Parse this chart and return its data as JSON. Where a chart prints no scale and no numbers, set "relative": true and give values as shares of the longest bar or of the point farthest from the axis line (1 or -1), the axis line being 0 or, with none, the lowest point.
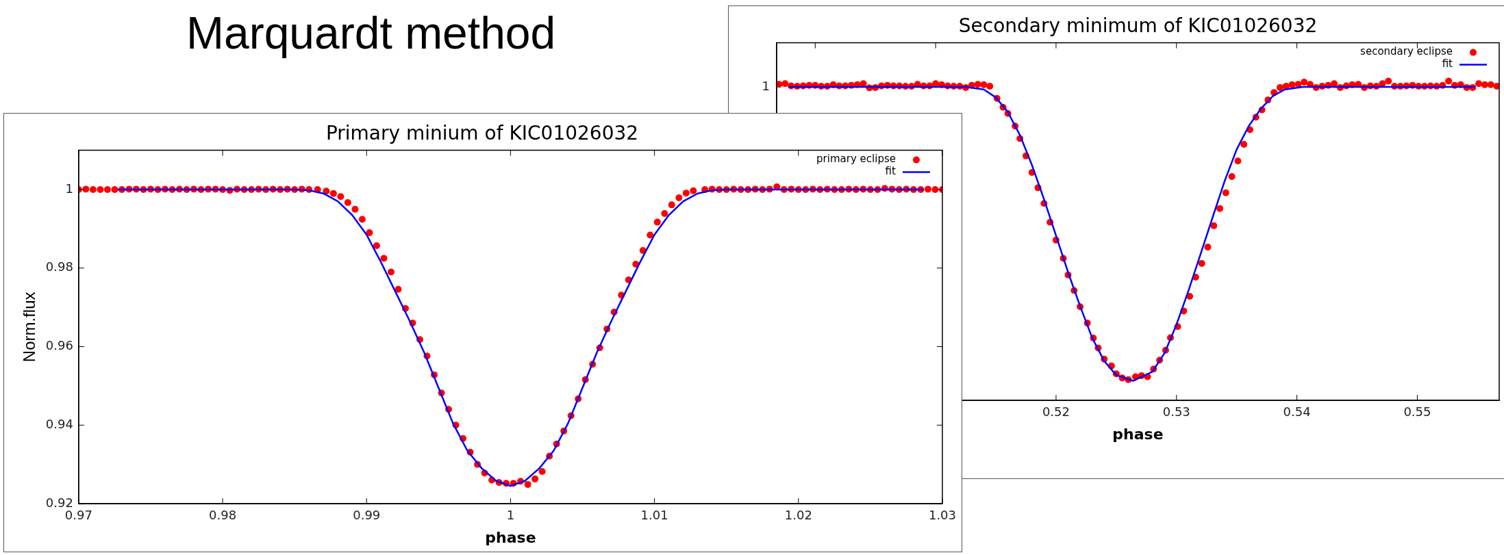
{
  "chart_data": [
    {
      "type": "scatter",
      "title": "Primary minium of KIC01026032",
      "xlabel": "phase",
      "ylabel": "Norm.flux",
      "annotations": [
        "Marquardt method"
      ],
      "xlim": [
        0.97,
        1.03
      ],
      "xticks": [
        0.97,
        0.98,
        0.99,
        1,
        1.01,
        1.02,
        1.03
      ],
      "ylim": [
        0.92,
        1.01
      ],
      "yticks": [
        0.92,
        0.94,
        0.96,
        0.98,
        1
      ],
      "grid": false,
      "legend": "top right",
      "series": [
        {
          "name": "primary eclipse",
          "marker": "circle",
          "color": "#ff0000",
          "x": [
            0.97,
            0.9705,
            0.971,
            0.9715,
            0.972,
            0.9725,
            0.973,
            0.9735,
            0.974,
            0.9745,
            0.975,
            0.9755,
            0.976,
            0.9765,
            0.977,
            0.9775,
            0.978,
            0.9785,
            0.979,
            0.9795,
            0.98,
            0.9805,
            0.981,
            0.9815,
            0.982,
            0.9825,
            0.983,
            0.9835,
            0.984,
            0.9845,
            0.985,
            0.9855,
            0.986,
            0.9866,
            0.9872,
            0.9877,
            0.9882,
            0.9887,
            0.9892,
            0.9897,
            0.9902,
            0.9907,
            0.9912,
            0.9917,
            0.9922,
            0.9927,
            0.9932,
            0.9937,
            0.9942,
            0.9947,
            0.9952,
            0.9957,
            0.9962,
            0.9967,
            0.9972,
            0.9977,
            0.9982,
            0.9987,
            0.9992,
            0.9997,
            1.0002,
            1.0007,
            1.0012,
            1.0017,
            1.0022,
            1.0027,
            1.0032,
            1.0037,
            1.0042,
            1.0047,
            1.0052,
            1.0057,
            1.0062,
            1.0067,
            1.0072,
            1.0077,
            1.0082,
            1.0087,
            1.0092,
            1.0097,
            1.0102,
            1.0107,
            1.0112,
            1.0117,
            1.0122,
            1.0127,
            1.0135,
            1.014,
            1.0145,
            1.015,
            1.0155,
            1.016,
            1.0165,
            1.017,
            1.0175,
            1.018,
            1.0185,
            1.019,
            1.0195,
            1.02,
            1.0205,
            1.021,
            1.0215,
            1.022,
            1.0225,
            1.023,
            1.0235,
            1.024,
            1.0245,
            1.025,
            1.0255,
            1.026,
            1.0265,
            1.027,
            1.0275,
            1.028,
            1.0285,
            1.029,
            1.0295,
            1.03
          ],
          "values": [
            1,
            1.0001,
            1,
            1,
            1,
            1,
            1,
            1.0001,
            1.0001,
            1,
            1.0001,
            1,
            1.0001,
            1,
            1.0001,
            1,
            1.0001,
            1,
            1.0001,
            1.0001,
            1,
            0.9998,
            1.0001,
            1,
            1,
            1.0001,
            1,
            1.0001,
            1,
            1.0001,
            1,
            1.0001,
            1,
            1.0,
            0.9996,
            0.999,
            0.9982,
            0.9967,
            0.995,
            0.9924,
            0.989,
            0.9857,
            0.9825,
            0.979,
            0.9746,
            0.9697,
            0.966,
            0.9618,
            0.9576,
            0.9528,
            0.9482,
            0.944,
            0.94,
            0.9366,
            0.9331,
            0.93,
            0.9278,
            0.926,
            0.9254,
            0.9252,
            0.9252,
            0.9257,
            0.9249,
            0.9263,
            0.9282,
            0.9321,
            0.9352,
            0.9385,
            0.9424,
            0.9467,
            0.9516,
            0.9555,
            0.9597,
            0.9645,
            0.9688,
            0.9731,
            0.977,
            0.981,
            0.9845,
            0.9884,
            0.9917,
            0.9939,
            0.9961,
            0.9979,
            0.9991,
            0.9997,
            1,
            1.0001,
            1,
            1,
            1.0001,
            1,
            1,
            1.0001,
            1,
            1.0001,
            1.0007,
            1,
            1.0001,
            1,
            1,
            1.0001,
            1,
            1.0001,
            1,
            1,
            1.0001,
            1,
            1.0001,
            1,
            1,
            1.0003,
            1.0001,
            1,
            1.0001,
            1,
            1,
            1.0001,
            1,
            1
          ]
        },
        {
          "name": "fit",
          "type": "line",
          "color": "#0000ff",
          "x": [
            0.9727,
            0.985,
            0.986,
            0.987,
            0.988,
            0.989,
            0.99,
            0.991,
            0.992,
            0.993,
            0.994,
            0.995,
            0.996,
            0.997,
            0.998,
            0.999,
            1,
            1.001,
            1.002,
            1.003,
            1.004,
            1.005,
            1.006,
            1.007,
            1.008,
            1.009,
            1.01,
            1.011,
            1.012,
            1.013,
            1.014,
            1.015,
            1.0287
          ],
          "values": [
            1,
            1,
            0.9998,
            0.999,
            0.997,
            0.9935,
            0.9885,
            0.9815,
            0.974,
            0.9665,
            0.9585,
            0.9495,
            0.9405,
            0.9335,
            0.929,
            0.9258,
            0.9245,
            0.9258,
            0.929,
            0.9335,
            0.9405,
            0.9495,
            0.9585,
            0.9665,
            0.974,
            0.9815,
            0.9885,
            0.9935,
            0.997,
            0.999,
            0.9998,
            1,
            1
          ]
        }
      ]
    },
    {
      "type": "scatter",
      "title": "Secondary minimum of KIC01026032",
      "xlabel": "phase",
      "annotations": [
        "1"
      ],
      "relative": true,
      "xlim": [
        0.4968,
        0.5568
      ],
      "xticks": [
        {
          "value": 0.5,
          "label": null
        },
        {
          "value": 0.51,
          "label": null
        },
        0.52,
        0.53,
        0.54,
        0.55
      ],
      "grid": false,
      "legend": "top right",
      "series": [
        {
          "name": "secondary eclipse",
          "marker": "circle",
          "color": "#ff0000",
          "x": [
            0.497,
            0.4975,
            0.498,
            0.4985,
            0.499,
            0.4995,
            0.5,
            0.5005,
            0.501,
            0.5015,
            0.502,
            0.5025,
            0.503,
            0.5035,
            0.504,
            0.5045,
            0.505,
            0.5055,
            0.506,
            0.5065,
            0.507,
            0.5075,
            0.508,
            0.5085,
            0.509,
            0.5095,
            0.51,
            0.5105,
            0.511,
            0.5115,
            0.512,
            0.5125,
            0.513,
            0.5135,
            0.514,
            0.5145,
            0.5151,
            0.5156,
            0.516,
            0.5166,
            0.517,
            0.5175,
            0.518,
            0.5185,
            0.519,
            0.5195,
            0.52,
            0.5206,
            0.521,
            0.5215,
            0.522,
            0.5226,
            0.5231,
            0.5235,
            0.524,
            0.5246,
            0.525,
            0.5255,
            0.526,
            0.5266,
            0.5271,
            0.5276,
            0.5281,
            0.5286,
            0.5291,
            0.5295,
            0.5301,
            0.5306,
            0.5311,
            0.5316,
            0.5321,
            0.5326,
            0.5331,
            0.5336,
            0.5341,
            0.5346,
            0.5351,
            0.5356,
            0.5361,
            0.5366,
            0.5371,
            0.5376,
            0.5381,
            0.5386,
            0.5391,
            0.5396,
            0.5401,
            0.5406,
            0.5411,
            0.5416,
            0.5421,
            0.5426,
            0.5431,
            0.5436,
            0.5441,
            0.5446,
            0.5451,
            0.5456,
            0.5461,
            0.5466,
            0.5471,
            0.5476,
            0.5481,
            0.5486,
            0.5491,
            0.5496,
            0.5501,
            0.5506,
            0.5511,
            0.5516,
            0.5521,
            0.5526,
            0.5531,
            0.5536,
            0.5541,
            0.5546,
            0.5551,
            0.5556,
            0.5561,
            0.5566
          ],
          "values": [
            0.99,
            0.992,
            0.985,
            0.984,
            0.985,
            0.987,
            0.987,
            0.984,
            0.984,
            0.989,
            0.985,
            0.985,
            0.987,
            0.989,
            0.992,
            0.979,
            0.98,
            0.985,
            0.987,
            0.985,
            0.985,
            0.984,
            0.984,
            0.99,
            0.985,
            0.985,
            0.992,
            0.989,
            0.985,
            0.984,
            0.984,
            0.98,
            0.987,
            0.99,
            0.989,
            0.984,
            0.946,
            0.918,
            0.899,
            0.859,
            0.82,
            0.766,
            0.714,
            0.666,
            0.617,
            0.558,
            0.502,
            0.445,
            0.393,
            0.344,
            0.293,
            0.242,
            0.195,
            0.164,
            0.129,
            0.108,
            0.083,
            0.07,
            0.065,
            0.074,
            0.077,
            0.074,
            0.098,
            0.126,
            0.157,
            0.196,
            0.231,
            0.28,
            0.326,
            0.386,
            0.429,
            0.48,
            0.547,
            0.601,
            0.65,
            0.701,
            0.75,
            0.802,
            0.848,
            0.887,
            0.91,
            0.941,
            0.964,
            0.98,
            0.984,
            0.989,
            0.99,
            0.997,
            0.99,
            0.98,
            0.984,
            0.987,
            0.992,
            0.98,
            0.985,
            0.989,
            0.99,
            0.98,
            0.985,
            0.984,
            0.992,
            1,
            0.984,
            0.984,
            0.985,
            0.987,
            0.984,
            0.984,
            0.985,
            0.984,
            0.987,
            1,
            0.987,
            0.989,
            0.98,
            0.98,
            0.992,
            0.989,
            0.989,
            0.984
          ]
        },
        {
          "name": "fit",
          "type": "line",
          "color": "#0000ff",
          "x": [
            0.4978,
            0.5125,
            0.514,
            0.515,
            0.516,
            0.517,
            0.518,
            0.519,
            0.52,
            0.521,
            0.522,
            0.523,
            0.524,
            0.525,
            0.5264,
            0.528,
            0.529,
            0.53,
            0.531,
            0.532,
            0.533,
            0.534,
            0.535,
            0.536,
            0.537,
            0.538,
            0.539,
            0.5405,
            0.5548
          ],
          "values": [
            0.982,
            0.982,
            0.974,
            0.949,
            0.903,
            0.831,
            0.737,
            0.63,
            0.516,
            0.401,
            0.295,
            0.196,
            0.123,
            0.079,
            0.061,
            0.09,
            0.147,
            0.237,
            0.344,
            0.458,
            0.573,
            0.687,
            0.786,
            0.859,
            0.913,
            0.953,
            0.974,
            0.982,
            0.982
          ]
        }
      ]
    }
  ]
}
